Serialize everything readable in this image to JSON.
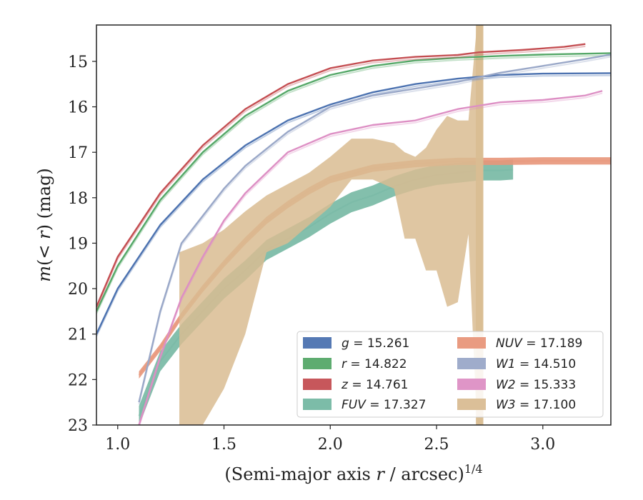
{
  "chart_data": {
    "type": "line",
    "xlabel": "(Semi-major axis r / arcsec)",
    "xlabel_var": "r",
    "xlabel_pre": "(Semi-major axis ",
    "xlabel_post": " / arcsec)",
    "xlabel_sup": "1/4",
    "ylabel_pre": "m(",
    "ylabel_lt": "< ",
    "ylabel_var": "r",
    "ylabel_post": ") (mag)",
    "xlim": [
      0.9,
      3.32
    ],
    "ylim": [
      23.0,
      14.2
    ],
    "y_inverted": true,
    "xticks": [
      1.0,
      1.5,
      2.0,
      2.5,
      3.0
    ],
    "xtick_labels": [
      "1.0",
      "1.5",
      "2.0",
      "2.5",
      "3.0"
    ],
    "yticks": [
      15,
      16,
      17,
      18,
      19,
      20,
      21,
      22,
      23
    ],
    "ytick_labels": [
      "15",
      "16",
      "17",
      "18",
      "19",
      "20",
      "21",
      "22",
      "23"
    ],
    "grid": false,
    "legend_position": "lower-right",
    "series": [
      {
        "name": "g = 15.261",
        "color": "#4c72b0",
        "kind": "line",
        "x": [
          0.9,
          1.0,
          1.2,
          1.4,
          1.6,
          1.8,
          2.0,
          2.2,
          2.4,
          2.6,
          2.8,
          3.0,
          3.32
        ],
        "y": [
          21.0,
          20.0,
          18.6,
          17.6,
          16.85,
          16.3,
          15.95,
          15.68,
          15.5,
          15.38,
          15.3,
          15.27,
          15.26
        ]
      },
      {
        "name": "r = 14.822",
        "color": "#55a868",
        "kind": "line",
        "x": [
          0.9,
          1.0,
          1.2,
          1.4,
          1.6,
          1.8,
          2.0,
          2.2,
          2.4,
          2.6,
          2.8,
          3.0,
          3.32
        ],
        "y": [
          20.5,
          19.5,
          18.05,
          17.0,
          16.2,
          15.65,
          15.3,
          15.1,
          14.98,
          14.92,
          14.88,
          14.85,
          14.82
        ]
      },
      {
        "name": "z = 14.761",
        "color": "#c44e52",
        "kind": "line",
        "x": [
          0.9,
          1.0,
          1.2,
          1.4,
          1.6,
          1.8,
          2.0,
          2.2,
          2.4,
          2.6,
          2.7,
          2.9,
          3.1,
          3.2
        ],
        "y": [
          20.4,
          19.3,
          17.9,
          16.85,
          16.05,
          15.5,
          15.15,
          14.98,
          14.9,
          14.86,
          14.8,
          14.75,
          14.68,
          14.62
        ]
      },
      {
        "name": "FUV = 17.327",
        "color": "#75b8a3",
        "kind": "band",
        "x": [
          1.1,
          1.2,
          1.3,
          1.4,
          1.5,
          1.6,
          1.7,
          1.8,
          1.9,
          2.0,
          2.1,
          2.2,
          2.3,
          2.4,
          2.5,
          2.6,
          2.7,
          2.8,
          2.86
        ],
        "y": [
          22.8,
          21.6,
          21.0,
          20.5,
          20.0,
          19.6,
          19.15,
          18.9,
          18.65,
          18.35,
          18.1,
          17.95,
          17.75,
          17.6,
          17.5,
          17.45,
          17.4,
          17.4,
          17.38
        ]
      },
      {
        "name": "NUV = 17.189",
        "color": "#e8967a",
        "kind": "band",
        "x": [
          1.1,
          1.2,
          1.3,
          1.4,
          1.5,
          1.6,
          1.7,
          1.8,
          1.9,
          2.0,
          2.2,
          2.4,
          2.6,
          2.8,
          3.0,
          3.32
        ],
        "y": [
          21.9,
          21.3,
          20.6,
          20.0,
          19.45,
          18.95,
          18.5,
          18.15,
          17.85,
          17.6,
          17.35,
          17.25,
          17.2,
          17.2,
          17.19,
          17.19
        ]
      },
      {
        "name": "W1 = 14.510",
        "color": "#9aa8c8",
        "kind": "line",
        "x": [
          1.1,
          1.2,
          1.3,
          1.4,
          1.5,
          1.6,
          1.8,
          2.0,
          2.2,
          2.4,
          2.6,
          2.8,
          3.0,
          3.2,
          3.32
        ],
        "y": [
          22.5,
          20.5,
          19.0,
          18.4,
          17.8,
          17.3,
          16.55,
          16.0,
          15.75,
          15.6,
          15.45,
          15.25,
          15.1,
          14.95,
          14.85
        ]
      },
      {
        "name": "W2 = 15.333",
        "color": "#dd8fc4",
        "kind": "line",
        "x": [
          1.1,
          1.2,
          1.3,
          1.4,
          1.5,
          1.6,
          1.8,
          2.0,
          2.2,
          2.4,
          2.6,
          2.8,
          3.0,
          3.2,
          3.28
        ],
        "y": [
          23.0,
          21.5,
          20.2,
          19.3,
          18.5,
          17.9,
          17.0,
          16.6,
          16.4,
          16.3,
          16.05,
          15.9,
          15.85,
          15.75,
          15.65
        ]
      },
      {
        "name": "W3 = 17.100",
        "color": "#d9bc92",
        "kind": "band",
        "x": [
          1.29,
          1.4,
          1.5,
          1.6,
          1.7,
          1.8,
          1.9,
          2.0,
          2.1,
          2.2,
          2.3,
          2.35,
          2.4,
          2.45,
          2.5,
          2.55,
          2.6,
          2.65,
          2.69,
          2.72
        ],
        "y_upper": [
          19.2,
          19.0,
          18.7,
          18.3,
          17.95,
          17.7,
          17.45,
          17.1,
          16.7,
          16.7,
          16.8,
          17.0,
          17.1,
          16.9,
          16.5,
          16.2,
          16.3,
          16.3,
          14.2,
          14.2
        ],
        "y_lower": [
          23.0,
          23.0,
          22.2,
          21.0,
          19.2,
          19.0,
          18.6,
          18.2,
          17.6,
          17.6,
          17.8,
          18.9,
          18.9,
          19.6,
          19.6,
          20.4,
          20.3,
          18.8,
          23.0,
          23.0
        ]
      }
    ]
  }
}
